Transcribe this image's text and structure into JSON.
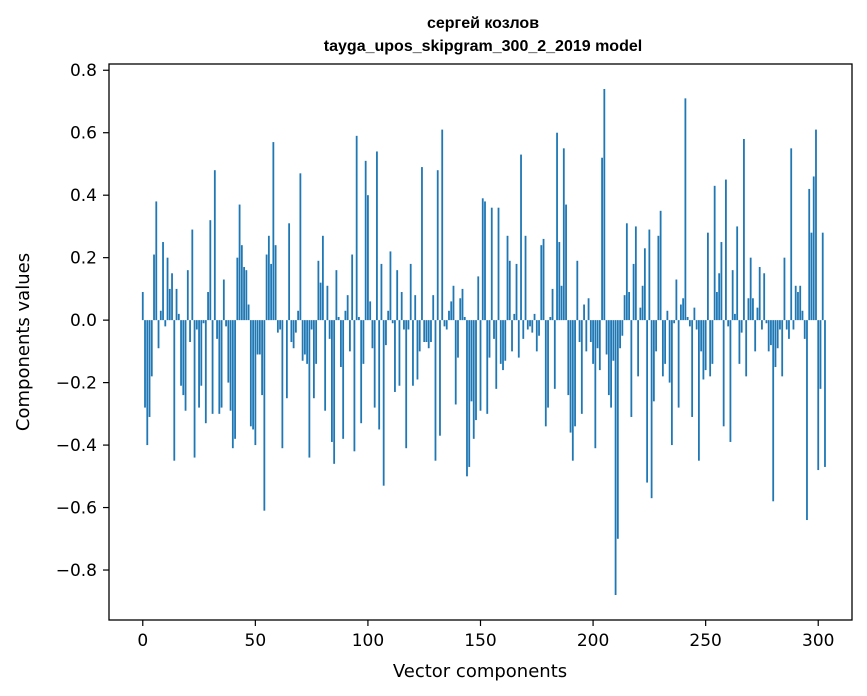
{
  "chart_data": {
    "type": "bar",
    "title": "сергей козлов",
    "subtitle": "tayga_upos_skipgram_300_2_2019 model",
    "xlabel": "Vector components",
    "ylabel": "Components values",
    "xlim": [
      -15,
      315
    ],
    "ylim": [
      -0.96,
      0.82
    ],
    "xticks": [
      0,
      50,
      100,
      150,
      200,
      250,
      300
    ],
    "yticks": [
      -0.8,
      -0.6,
      -0.4,
      -0.2,
      0.0,
      0.2,
      0.4,
      0.6,
      0.8
    ],
    "ytick_labels": [
      "−0.8",
      "−0.6",
      "−0.4",
      "−0.2",
      "0.0",
      "0.2",
      "0.4",
      "0.6",
      "0.8"
    ],
    "bar_color": "#1f77b4",
    "grid": false,
    "values": [
      0.09,
      -0.28,
      -0.4,
      -0.31,
      -0.18,
      0.21,
      0.38,
      -0.09,
      0.03,
      0.25,
      -0.02,
      0.2,
      0.1,
      0.15,
      -0.45,
      0.1,
      0.02,
      -0.21,
      -0.24,
      -0.29,
      0.16,
      -0.07,
      0.29,
      -0.44,
      -0.03,
      -0.28,
      -0.21,
      -0.01,
      -0.33,
      0.09,
      0.32,
      -0.3,
      0.48,
      -0.06,
      -0.3,
      -0.28,
      0.13,
      -0.02,
      -0.2,
      -0.29,
      -0.41,
      -0.38,
      0.2,
      0.37,
      0.24,
      0.17,
      0.16,
      0.05,
      -0.34,
      -0.35,
      -0.4,
      -0.11,
      -0.11,
      -0.24,
      -0.61,
      0.21,
      0.27,
      0.18,
      0.57,
      0.24,
      -0.04,
      -0.03,
      -0.41,
      0.0,
      -0.25,
      0.31,
      -0.07,
      -0.09,
      -0.04,
      0.03,
      0.47,
      -0.13,
      -0.11,
      -0.14,
      -0.44,
      -0.03,
      -0.25,
      -0.14,
      0.19,
      0.12,
      0.27,
      -0.29,
      0.11,
      -0.06,
      -0.39,
      -0.46,
      0.16,
      0.01,
      -0.15,
      -0.38,
      0.03,
      0.08,
      -0.1,
      0.21,
      -0.42,
      0.59,
      0.01,
      -0.33,
      -0.14,
      0.51,
      0.4,
      0.06,
      -0.09,
      -0.28,
      0.54,
      -0.35,
      0.18,
      -0.53,
      -0.08,
      0.03,
      0.22,
      -0.01,
      -0.23,
      0.16,
      -0.21,
      0.09,
      -0.03,
      -0.41,
      -0.03,
      0.18,
      -0.21,
      0.08,
      -0.19,
      -0.1,
      0.49,
      -0.07,
      -0.07,
      -0.09,
      -0.07,
      0.08,
      -0.45,
      0.48,
      -0.37,
      0.61,
      -0.02,
      -0.03,
      0.03,
      0.06,
      0.11,
      -0.27,
      -0.12,
      0.07,
      0.1,
      0.01,
      -0.5,
      -0.47,
      -0.26,
      -0.38,
      -0.32,
      0.14,
      -0.29,
      0.39,
      0.38,
      -0.3,
      -0.12,
      0.36,
      -0.06,
      -0.22,
      0.36,
      -0.14,
      -0.16,
      -0.13,
      0.27,
      0.19,
      -0.1,
      0.02,
      0.18,
      -0.12,
      0.53,
      -0.06,
      0.27,
      -0.03,
      -0.02,
      -0.04,
      0.02,
      -0.1,
      -0.05,
      0.24,
      0.26,
      -0.34,
      -0.28,
      0.01,
      0.1,
      -0.22,
      0.6,
      0.25,
      0.11,
      0.55,
      0.37,
      -0.24,
      -0.36,
      -0.45,
      -0.34,
      0.19,
      -0.07,
      -0.3,
      0.05,
      -0.1,
      0.07,
      -0.07,
      -0.14,
      -0.41,
      -0.09,
      -0.16,
      0.52,
      0.74,
      -0.11,
      -0.24,
      -0.28,
      -0.13,
      -0.88,
      -0.7,
      -0.09,
      -0.05,
      0.08,
      0.31,
      0.09,
      -0.31,
      0.18,
      0.3,
      -0.18,
      0.04,
      0.11,
      0.23,
      -0.52,
      0.29,
      -0.57,
      -0.26,
      -0.1,
      0.27,
      0.35,
      -0.18,
      -0.14,
      0.03,
      -0.2,
      -0.4,
      -0.01,
      0.13,
      -0.28,
      0.05,
      0.07,
      0.71,
      0.01,
      -0.02,
      -0.31,
      0.04,
      -0.03,
      -0.45,
      -0.1,
      -0.19,
      -0.16,
      0.28,
      -0.18,
      -0.14,
      0.43,
      0.09,
      0.15,
      0.25,
      -0.34,
      0.45,
      -0.02,
      -0.39,
      0.16,
      0.02,
      0.3,
      -0.14,
      -0.04,
      0.58,
      -0.18,
      0.07,
      0.2,
      0.07,
      -0.1,
      0.04,
      0.17,
      -0.03,
      0.15,
      -0.01,
      -0.1,
      -0.08,
      -0.58,
      -0.15,
      -0.09,
      -0.03,
      -0.18,
      0.2,
      -0.03,
      -0.06,
      0.55,
      -0.03,
      0.11,
      0.09,
      0.11,
      0.03,
      -0.06,
      -0.64,
      0.42,
      0.28,
      0.46,
      0.61,
      -0.48,
      -0.22,
      0.28,
      -0.47
    ]
  }
}
